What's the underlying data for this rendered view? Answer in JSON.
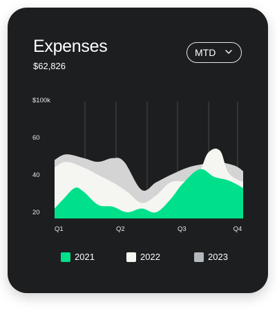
{
  "card": {
    "title": "Expenses",
    "total": "$62,826",
    "period_select": {
      "selected": "MTD",
      "icon": "chevron-down-icon"
    }
  },
  "colors": {
    "background": "#1d1e20",
    "s2021": "#00e08b",
    "s2022": "#f5f5f2",
    "s2023": "#d4d4d4",
    "swatch2023": "#b3b8bd",
    "grid": "#4a4b4e"
  },
  "chart_data": {
    "type": "area",
    "title": "",
    "xlabel": "",
    "ylabel": "",
    "x_ticks": [
      "Q1",
      "Q2",
      "Q3",
      "Q4"
    ],
    "y_ticks": [
      "$100k",
      "60",
      "40",
      "20"
    ],
    "y_tick_values": [
      100,
      60,
      40,
      20
    ],
    "ylim": [
      20,
      100
    ],
    "legend_position": "bottom",
    "grid": "vertical",
    "series": [
      {
        "name": "2021",
        "color": "#00e08b",
        "points": [
          [
            0,
            22
          ],
          [
            0.15,
            27
          ],
          [
            0.35,
            33
          ],
          [
            0.5,
            31
          ],
          [
            0.75,
            24
          ],
          [
            1.0,
            23
          ],
          [
            1.25,
            20
          ],
          [
            1.5,
            22
          ],
          [
            1.75,
            20
          ],
          [
            2.0,
            27
          ],
          [
            2.2,
            35
          ],
          [
            2.5,
            43
          ],
          [
            2.75,
            39
          ],
          [
            3.0,
            37
          ],
          [
            3.25,
            33
          ]
        ]
      },
      {
        "name": "2022",
        "color": "#f5f5f2",
        "points": [
          [
            0,
            44
          ],
          [
            0.2,
            47
          ],
          [
            0.5,
            44
          ],
          [
            0.75,
            40
          ],
          [
            1.0,
            36
          ],
          [
            1.25,
            31
          ],
          [
            1.5,
            25
          ],
          [
            1.75,
            29
          ],
          [
            2.0,
            36
          ],
          [
            2.3,
            37
          ],
          [
            2.5,
            42
          ],
          [
            2.65,
            52
          ],
          [
            2.85,
            53
          ],
          [
            3.0,
            41
          ],
          [
            3.25,
            36
          ]
        ]
      },
      {
        "name": "2023",
        "color": "#d4d4d4",
        "points": [
          [
            0,
            48
          ],
          [
            0.2,
            51
          ],
          [
            0.5,
            49
          ],
          [
            0.75,
            47
          ],
          [
            1.0,
            49
          ],
          [
            1.2,
            47
          ],
          [
            1.5,
            32
          ],
          [
            1.75,
            36
          ],
          [
            2.0,
            40
          ],
          [
            2.3,
            44
          ],
          [
            2.6,
            46
          ],
          [
            2.8,
            47
          ],
          [
            3.1,
            45
          ],
          [
            3.25,
            42
          ]
        ]
      }
    ]
  },
  "legend": [
    {
      "label": "2021",
      "color": "#00e08b"
    },
    {
      "label": "2022",
      "color": "#f5f5f2"
    },
    {
      "label": "2023",
      "color": "#b3b8bd"
    }
  ]
}
